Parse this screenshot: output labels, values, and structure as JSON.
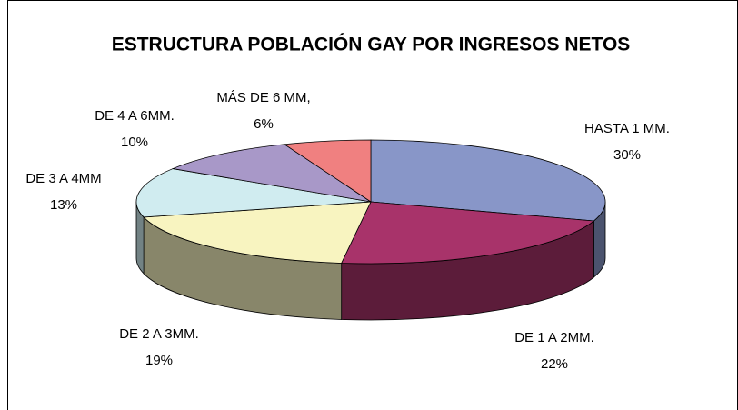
{
  "chart_data": {
    "type": "pie3d",
    "title": "ESTRUCTURA POBLACIÓN GAY POR INGRESOS NETOS",
    "categories": [
      "HASTA 1 MM.",
      "DE 1 A 2MM.",
      "DE 2 A 3MM.",
      "DE 3 A 4MM",
      "DE 4 A 6MM.",
      "MÁS DE 6 MM,"
    ],
    "values": [
      30,
      22,
      19,
      13,
      10,
      6
    ],
    "value_labels": [
      "30%",
      "22%",
      "19%",
      "13%",
      "10%",
      "6%"
    ],
    "colors": [
      "#8896c8",
      "#a8336a",
      "#f8f4c0",
      "#d0ecf0",
      "#a898c8",
      "#f08080"
    ]
  }
}
